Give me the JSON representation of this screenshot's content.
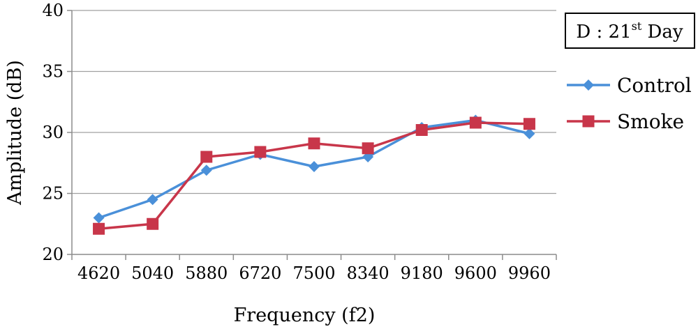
{
  "chart_data": {
    "type": "line",
    "categories": [
      "4620",
      "5040",
      "5880",
      "6720",
      "7500",
      "8340",
      "9180",
      "9600",
      "9960"
    ],
    "series": [
      {
        "name": "Control",
        "color": "#4a90d9",
        "marker": "diamond",
        "values": [
          23.0,
          24.5,
          26.9,
          28.2,
          27.2,
          28.0,
          30.4,
          31.0,
          29.9
        ]
      },
      {
        "name": "Smoke",
        "color": "#c8364a",
        "marker": "square",
        "values": [
          22.1,
          22.5,
          28.0,
          28.4,
          29.1,
          28.7,
          30.2,
          30.8,
          30.7
        ]
      }
    ],
    "xlabel": "Frequency (f2)",
    "ylabel": "Amplitude (dB)",
    "ylim": [
      20,
      40
    ],
    "yticks": [
      20,
      25,
      30,
      35,
      40
    ],
    "grid": true,
    "legend_position": "right",
    "annotation": {
      "prefix": "D : 21",
      "superscript": "st",
      "suffix": " Day"
    }
  }
}
